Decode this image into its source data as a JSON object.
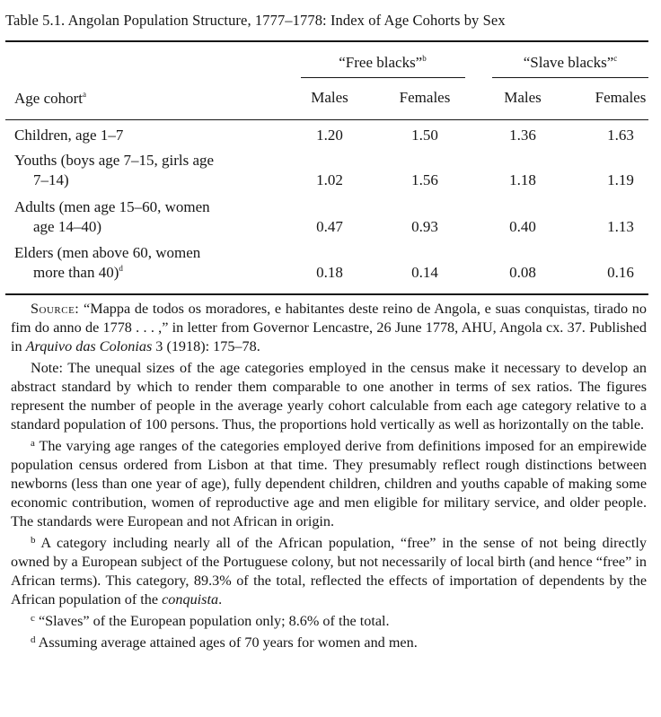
{
  "title": "Table 5.1. Angolan Population Structure, 1777–1778: Index of Age Cohorts by Sex",
  "groups": [
    {
      "label": "“Free blacks”",
      "note": "b"
    },
    {
      "label": "“Slave blacks”",
      "note": "c"
    }
  ],
  "columns": {
    "age_cohort": "Age cohort",
    "age_cohort_note": "a",
    "free_males": "Males",
    "free_females": "Females",
    "slave_males": "Males",
    "slave_females": "Females"
  },
  "rows": [
    {
      "line1": "Children, age 1–7",
      "line2": "",
      "note": "",
      "values": [
        "1.20",
        "1.50",
        "1.36",
        "1.63"
      ]
    },
    {
      "line1": "Youths (boys age 7–15, girls age",
      "line2": "7–14)",
      "note": "",
      "values": [
        "1.02",
        "1.56",
        "1.18",
        "1.19"
      ]
    },
    {
      "line1": "Adults (men age 15–60, women",
      "line2": "age 14–40)",
      "note": "",
      "values": [
        "0.47",
        "0.93",
        "0.40",
        "1.13"
      ]
    },
    {
      "line1": "Elders (men above 60, women",
      "line2": "more than 40)",
      "note": "d",
      "values": [
        "0.18",
        "0.14",
        "0.08",
        "0.16"
      ]
    }
  ],
  "source": {
    "label": "Source:",
    "text_before": " “Mappa de todos os moradores, e habitantes deste reino de Angola, e suas conquistas, tirado no fim do anno de 1778 . . . ,” in letter from Governor Lencastre, 26 June 1778, AHU, Angola cx. 37. Published in ",
    "italic": "Arquivo das Colonias",
    "text_after": " 3 (1918): 175–78."
  },
  "note": "Note: The unequal sizes of the age categories employed in the census make it necessary to develop an abstract standard by which to render them comparable to one another in terms of sex ratios. The figures represent the number of people in the average yearly cohort calculable from each age category relative to a standard population of 100 persons. Thus, the proportions hold vertically as well as horizontally on the table.",
  "footnotes": [
    {
      "mark": "a",
      "text": "The varying age ranges of the categories employed derive from definitions imposed for an empirewide population census ordered from Lisbon at that time. They presumably reflect rough distinctions between newborns (less than one year of age), fully dependent children, children and youths capable of making some economic contribution, women of reproductive age and men eligible for military service, and older people. The standards were European and not African in origin.",
      "italic": "",
      "after": ""
    },
    {
      "mark": "b",
      "text": "A category including nearly all of the African population, “free” in the sense of not being directly owned by a European subject of the Portuguese colony, but not necessarily of local birth (and hence “free” in African terms). This category, 89.3% of the total, reflected the effects of importation of dependents by the African population of the ",
      "italic": "conquista",
      "after": "."
    },
    {
      "mark": "c",
      "text": "“Slaves” of the European population only; 8.6% of the total.",
      "italic": "",
      "after": ""
    },
    {
      "mark": "d",
      "text": "Assuming average attained ages of 70 years for women and men.",
      "italic": "",
      "after": ""
    }
  ]
}
